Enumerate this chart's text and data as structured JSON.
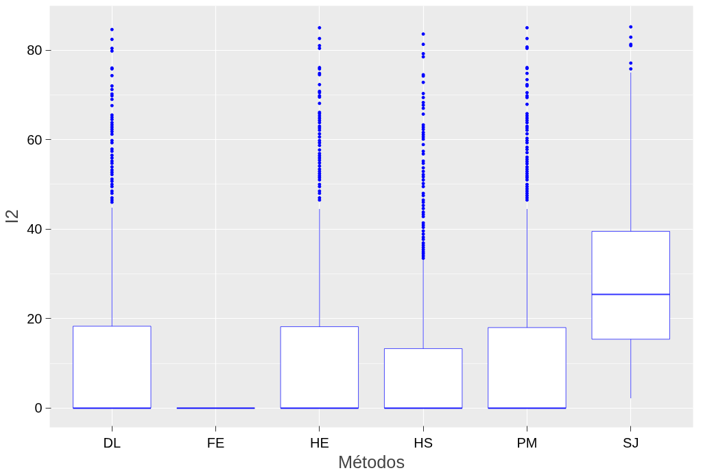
{
  "chart_data": {
    "type": "box",
    "xlabel": "Métodos",
    "ylabel": "I2",
    "categories": [
      "DL",
      "FE",
      "HE",
      "HS",
      "PM",
      "SJ"
    ],
    "color": "#0000ff",
    "ylim": [
      -4.3,
      89.9
    ],
    "yticks": [
      0,
      20,
      40,
      60,
      80
    ],
    "grid": true,
    "boxes": [
      {
        "low": 0,
        "q1": 0,
        "median": 0,
        "q3": 18.3,
        "high": 44.8,
        "outliers": [
          84.6,
          82.4,
          80.4,
          79.8,
          76.0,
          75.8,
          74.3,
          72.0,
          71.2,
          70.2,
          69.8,
          69.0,
          67.6,
          65.5,
          65.0,
          64.5,
          63.8,
          63.3,
          62.8,
          62.3,
          61.8,
          61.2,
          59.8,
          59.3,
          57.9,
          57.4,
          56.5,
          55.9,
          55.2,
          54.7,
          53.9,
          53.2,
          52.7,
          52.2,
          51.2,
          50.7,
          50.0,
          49.5,
          48.5,
          48.0,
          47.0,
          46.5,
          46.0
        ]
      },
      {
        "low": 0,
        "q1": 0,
        "median": 0,
        "q3": 0,
        "high": 0
      },
      {
        "low": 0,
        "q1": 0,
        "median": 0,
        "q3": 18.2,
        "high": 44.5,
        "outliers": [
          85.0,
          82.6,
          81.0,
          80.4,
          76.1,
          75.8,
          74.8,
          74.5,
          72.3,
          70.8,
          70.5,
          69.8,
          69.5,
          68.1,
          66.1,
          65.8,
          65.3,
          64.8,
          64.3,
          63.8,
          63.0,
          62.6,
          62.1,
          61.3,
          60.6,
          59.8,
          59.3,
          58.7,
          57.7,
          56.9,
          56.4,
          55.9,
          55.4,
          54.8,
          54.1,
          53.4,
          52.9,
          52.4,
          51.9,
          51.5,
          51.0,
          50.0,
          49.5,
          48.5,
          48.0,
          47.0,
          46.5
        ]
      },
      {
        "low": 0,
        "q1": 0,
        "median": 0,
        "q3": 13.3,
        "high": 33.3,
        "outliers": [
          83.6,
          81.3,
          79.2,
          78.5,
          74.5,
          74.2,
          72.8,
          70.3,
          69.4,
          68.3,
          67.7,
          67.0,
          65.7,
          63.3,
          62.8,
          62.3,
          61.6,
          61.1,
          60.6,
          60.1,
          58.9,
          57.4,
          56.8,
          55.2,
          54.7,
          53.7,
          52.9,
          52.2,
          51.7,
          51.0,
          50.2,
          49.5,
          48.0,
          47.5,
          46.5,
          46.0,
          45.3,
          44.6,
          43.8,
          43.3,
          42.8,
          41.4,
          40.9,
          40.4,
          39.6,
          38.9,
          38.2,
          37.7,
          36.9,
          36.4,
          35.9,
          35.4,
          34.9,
          34.5,
          34.0,
          33.5
        ]
      },
      {
        "low": 0,
        "q1": 0,
        "median": 0,
        "q3": 18.0,
        "high": 44.5,
        "outliers": [
          85.0,
          82.6,
          80.7,
          80.4,
          76.1,
          75.9,
          74.8,
          73.4,
          72.3,
          72.0,
          70.5,
          69.8,
          69.4,
          67.9,
          65.8,
          65.3,
          64.8,
          64.3,
          63.8,
          63.0,
          62.6,
          62.1,
          61.3,
          60.3,
          59.8,
          59.3,
          58.3,
          57.8,
          57.1,
          56.1,
          55.6,
          55.1,
          54.6,
          53.9,
          53.4,
          52.9,
          52.4,
          51.9,
          51.5,
          51.0,
          50.0,
          49.5,
          49.0,
          48.5,
          48.0,
          47.5,
          47.0,
          46.5
        ]
      },
      {
        "low": 2.2,
        "q1": 15.4,
        "median": 25.4,
        "q3": 39.5,
        "high": 75.0,
        "outliers": [
          85.2,
          82.9,
          81.3,
          81.0,
          77.1,
          75.8
        ]
      }
    ]
  }
}
